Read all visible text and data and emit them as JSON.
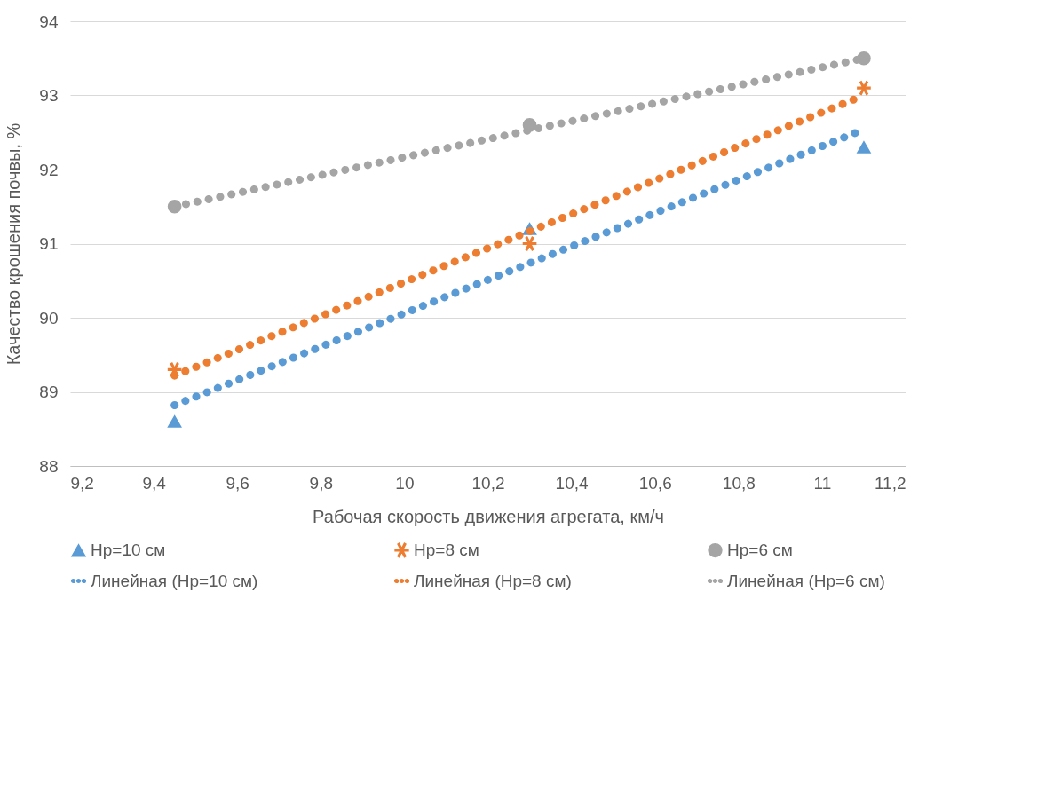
{
  "chart_data": {
    "type": "scatter",
    "xlabel": "Рабочая скорость движения агрегата, км/ч",
    "ylabel": "Качество крошения почвы, %",
    "xlim": [
      9.2,
      11.2
    ],
    "xticks": [
      {
        "value": 9.2,
        "label": "9,2"
      },
      {
        "value": 9.4,
        "label": "9,4"
      },
      {
        "value": 9.6,
        "label": "9,6"
      },
      {
        "value": 9.8,
        "label": "9,8"
      },
      10,
      {
        "value": 10.2,
        "label": "10,2"
      },
      {
        "value": 10.4,
        "label": "10,4"
      },
      {
        "value": 10.6,
        "label": "10,6"
      },
      {
        "value": 10.8,
        "label": "10,8"
      },
      11,
      {
        "value": 11.2,
        "label": "11,2"
      }
    ],
    "ylim": [
      88,
      94
    ],
    "yticks": [
      88,
      89,
      90,
      91,
      92,
      93,
      94
    ],
    "grid": "y",
    "legend": "bottom",
    "series": [
      {
        "name": "Hp=10 см",
        "type": "scatter",
        "marker": "triangle",
        "color": "#5b9bd5",
        "x": [
          9.45,
          10.3,
          11.1
        ],
        "values": [
          88.6,
          91.2,
          92.3
        ]
      },
      {
        "name": "Hp=8 см",
        "type": "scatter",
        "marker": "cross",
        "color": "#ed7d31",
        "x": [
          9.45,
          10.3,
          11.1
        ],
        "values": [
          89.3,
          91.0,
          93.1
        ]
      },
      {
        "name": "Hp=6 см",
        "type": "scatter",
        "marker": "circle",
        "color": "#a5a5a5",
        "x": [
          9.45,
          10.3,
          11.1
        ],
        "values": [
          91.5,
          92.6,
          93.5
        ]
      },
      {
        "name": "Линейная (Hp=10 см)",
        "type": "line",
        "line_style": "dotted",
        "color": "#5b9bd5",
        "x": [
          9.45,
          11.1
        ],
        "values": [
          88.82,
          92.54
        ]
      },
      {
        "name": "Линейная (Hp=8 см)",
        "type": "line",
        "line_style": "dotted",
        "color": "#ed7d31",
        "x": [
          9.45,
          11.1
        ],
        "values": [
          89.22,
          93.0
        ]
      },
      {
        "name": "Линейная (Hp=6 см)",
        "type": "line",
        "line_style": "dotted",
        "color": "#a5a5a5",
        "x": [
          9.45,
          11.1
        ],
        "values": [
          91.5,
          93.5
        ]
      }
    ]
  }
}
